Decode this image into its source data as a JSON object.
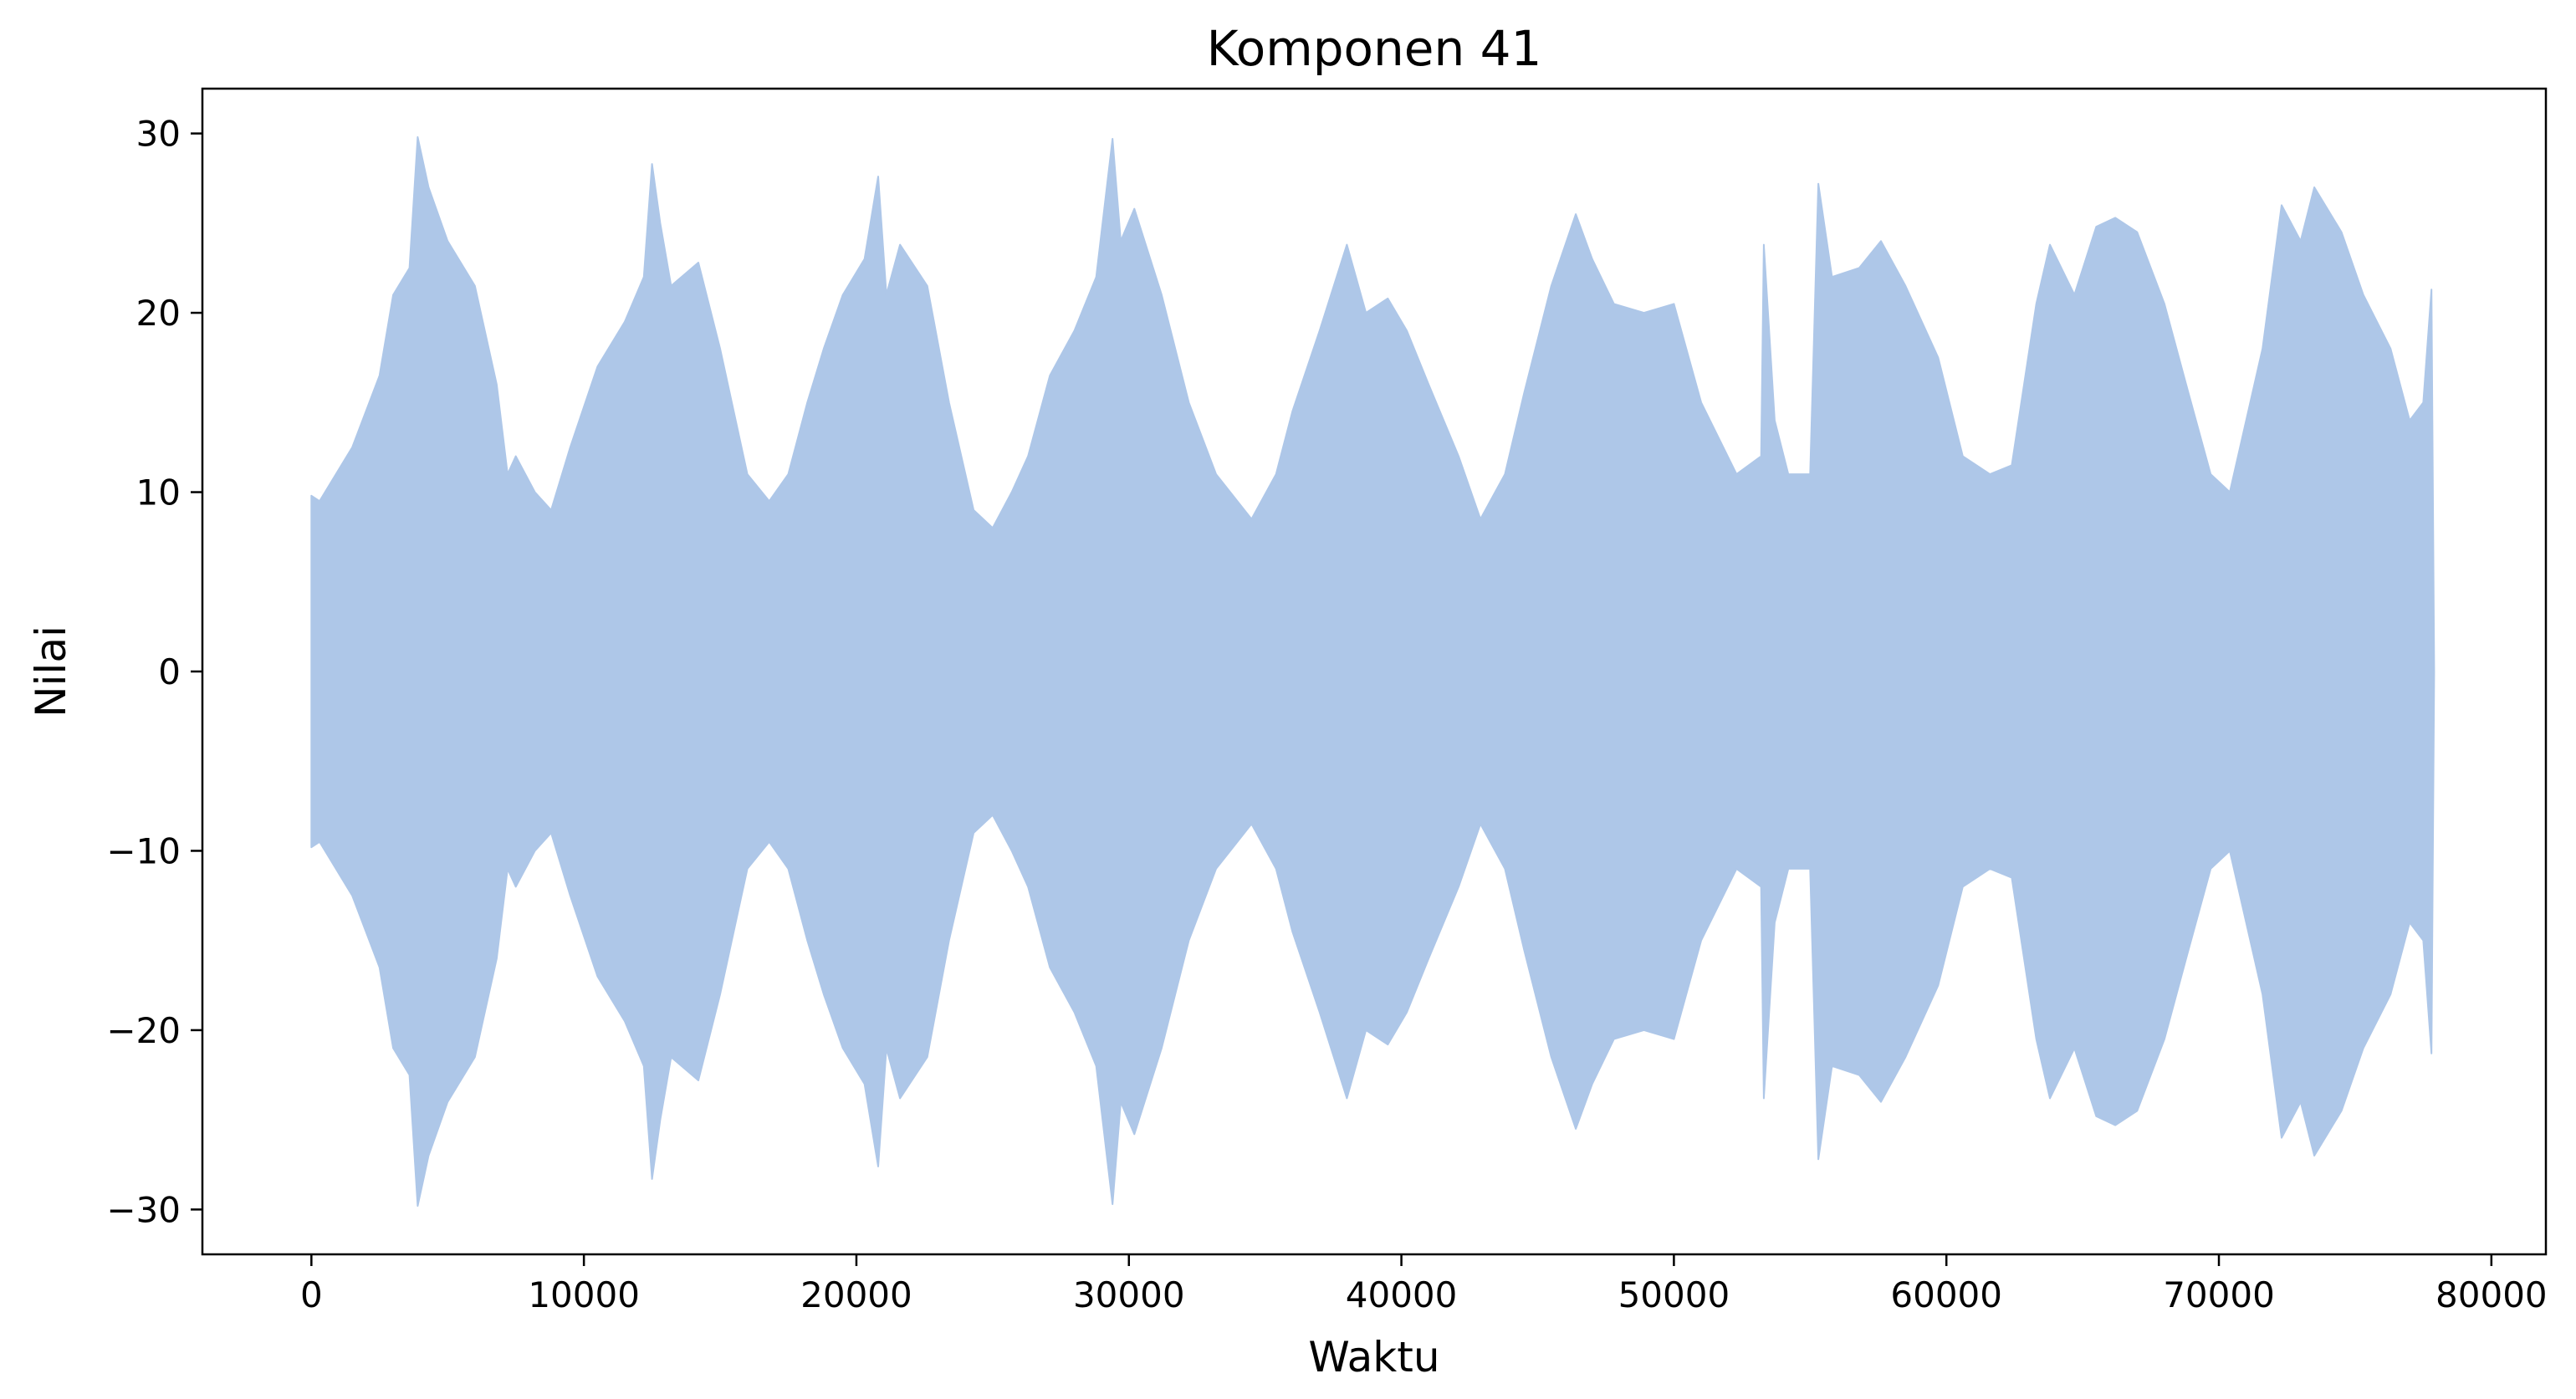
{
  "chart_data": {
    "type": "line",
    "title": "Komponen 41",
    "xlabel": "Waktu",
    "ylabel": "Nilai",
    "xlim": [
      -4000,
      82000
    ],
    "ylim": [
      -32.5,
      32.5
    ],
    "x_ticks": [
      {
        "value": 0,
        "label": "0"
      },
      {
        "value": 10000,
        "label": "10000"
      },
      {
        "value": 20000,
        "label": "20000"
      },
      {
        "value": 30000,
        "label": "30000"
      },
      {
        "value": 40000,
        "label": "40000"
      },
      {
        "value": 50000,
        "label": "50000"
      },
      {
        "value": 60000,
        "label": "60000"
      },
      {
        "value": 70000,
        "label": "70000"
      },
      {
        "value": 80000,
        "label": "80000"
      }
    ],
    "y_ticks": [
      {
        "value": 30,
        "label": "30"
      },
      {
        "value": 20,
        "label": "20"
      },
      {
        "value": 10,
        "label": "10"
      },
      {
        "value": 0,
        "label": "0"
      },
      {
        "value": -10,
        "label": "−10"
      },
      {
        "value": -20,
        "label": "−20"
      },
      {
        "value": -30,
        "label": "−30"
      }
    ],
    "grid": false,
    "legend": "none",
    "series": [
      {
        "color": "#aec7e8",
        "envelope_x": [
          0,
          300,
          1500,
          2500,
          3000,
          3600,
          3900,
          4300,
          5000,
          6000,
          6800,
          7200,
          7500,
          8200,
          8800,
          9500,
          10500,
          11500,
          12200,
          12500,
          12800,
          13200,
          14200,
          15000,
          16000,
          16800,
          17500,
          18200,
          18800,
          19500,
          20300,
          20800,
          21100,
          21600,
          22600,
          23400,
          24300,
          25000,
          25700,
          26300,
          27100,
          28000,
          28800,
          29400,
          29700,
          30200,
          31200,
          32200,
          33200,
          34500,
          35400,
          36000,
          37000,
          38000,
          38700,
          39500,
          40200,
          41000,
          42100,
          42900,
          43800,
          44500,
          45500,
          46400,
          47000,
          47800,
          48900,
          50000,
          51000,
          52300,
          53200,
          53300,
          53700,
          54200,
          55000,
          55300,
          55800,
          56800,
          57600,
          58500,
          59700,
          60600,
          61600,
          62400,
          63300,
          63800,
          64700,
          65500,
          66200,
          67000,
          68000,
          68800,
          69700,
          70400,
          71600,
          72300,
          73000,
          73500,
          74500,
          75300,
          76300,
          77000,
          77500,
          77800,
          77900
        ],
        "envelope_y": [
          9.8,
          9.5,
          12.5,
          16.5,
          21,
          22.5,
          29.8,
          27,
          24,
          21.5,
          16,
          11,
          12,
          10,
          9,
          12.5,
          17,
          19.5,
          22,
          28.3,
          25,
          21.5,
          22.8,
          18,
          11,
          9.5,
          11,
          15,
          18,
          21,
          23,
          27.6,
          21,
          23.8,
          21.5,
          15,
          9,
          8,
          10,
          12,
          16.5,
          19,
          22,
          29.7,
          24,
          25.8,
          21,
          15,
          11,
          8.5,
          11,
          14.5,
          19,
          23.8,
          20,
          20.8,
          19,
          16,
          12,
          8.5,
          11,
          15.5,
          21.5,
          25.5,
          23,
          20.5,
          20,
          20.5,
          15,
          11,
          12,
          23.8,
          14,
          11,
          11,
          27.2,
          22,
          22.5,
          24,
          21.5,
          17.5,
          12,
          11,
          11.5,
          20.5,
          23.8,
          21,
          24.8,
          25.3,
          24.5,
          20.5,
          16,
          11,
          10,
          18,
          26,
          24,
          27,
          24.5,
          21,
          18,
          14,
          15,
          21.3,
          0
        ]
      }
    ]
  }
}
